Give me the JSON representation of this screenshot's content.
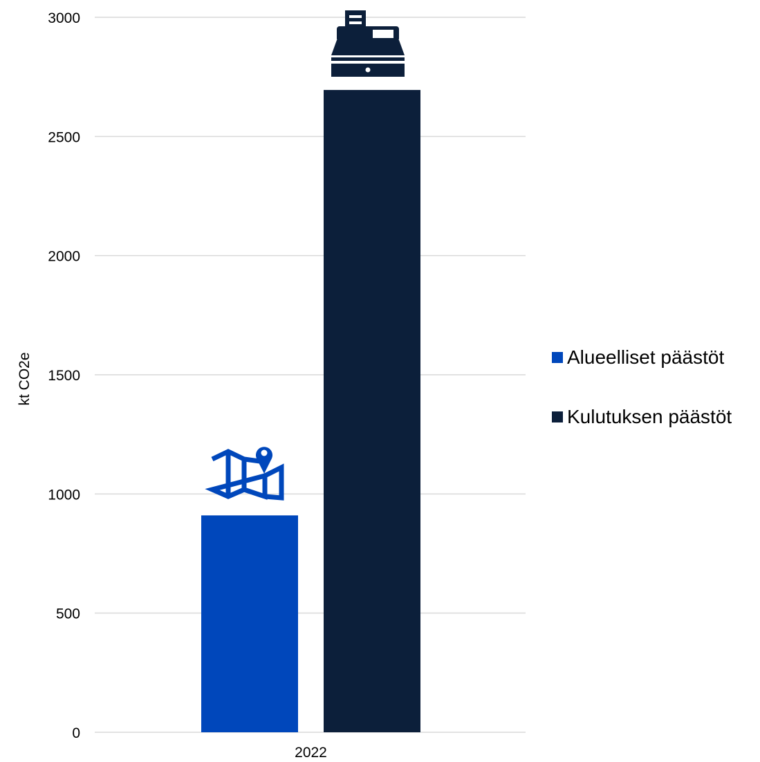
{
  "chart_data": {
    "type": "bar",
    "categories": [
      "2022"
    ],
    "series": [
      {
        "name": "Alueelliset päästöt",
        "values": [
          910
        ],
        "color": "#0047BB",
        "icon": "map-pin-icon"
      },
      {
        "name": "Kulutuksen päästöt",
        "values": [
          2695
        ],
        "color": "#0C1F3A",
        "icon": "cash-register-icon"
      }
    ],
    "ylabel": "kt CO2e",
    "xlabel": "",
    "ylim": [
      0,
      3000
    ],
    "yticks": [
      "0",
      "500",
      "1000",
      "1500",
      "2000",
      "2500",
      "3000"
    ],
    "grid": true,
    "legend_position": "right"
  }
}
